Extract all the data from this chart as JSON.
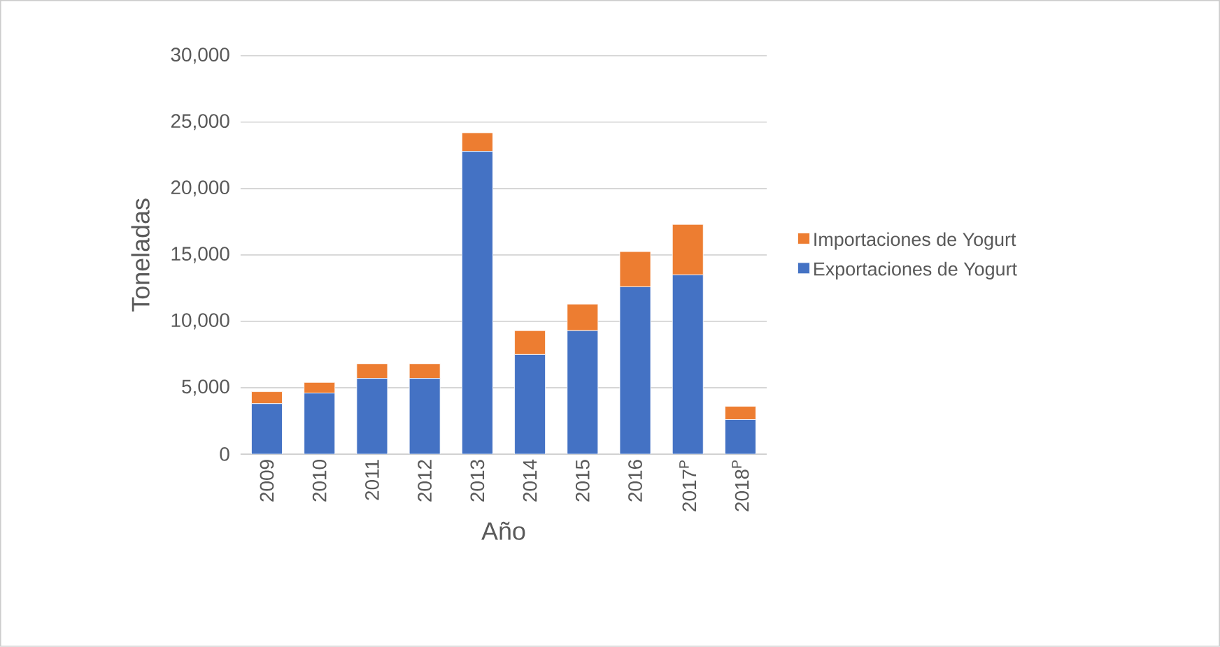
{
  "chart_data": {
    "type": "bar",
    "stacked": true,
    "xlabel": "Año",
    "ylabel": "Toneladas",
    "categories": [
      "2009",
      "2010",
      "2011",
      "2012",
      "2013",
      "2014",
      "2015",
      "2016",
      "2017$^{P}$",
      "2018$^{P}$"
    ],
    "series": [
      {
        "name": "Exportaciones de Yogurt",
        "color": "#4472c4",
        "values": [
          3800,
          4600,
          5700,
          5700,
          22800,
          7500,
          9300,
          12600,
          13500,
          2600
        ]
      },
      {
        "name": "Importaciones de Yogurt",
        "color": "#ed7d31",
        "values": [
          900,
          800,
          1100,
          1100,
          1400,
          1800,
          2000,
          2650,
          3800,
          1000
        ]
      }
    ],
    "ylim": [
      0,
      30000
    ],
    "yticks": [
      0,
      {
        "value": 5000,
        "label": "5,000"
      },
      {
        "value": 10000,
        "label": "10,000"
      },
      {
        "value": 15000,
        "label": "15,000"
      },
      {
        "value": 20000,
        "label": "20,000"
      },
      {
        "value": 25000,
        "label": "25,000"
      },
      {
        "value": 30000,
        "label": "30,000"
      }
    ],
    "grid": "y",
    "legend": "right"
  }
}
